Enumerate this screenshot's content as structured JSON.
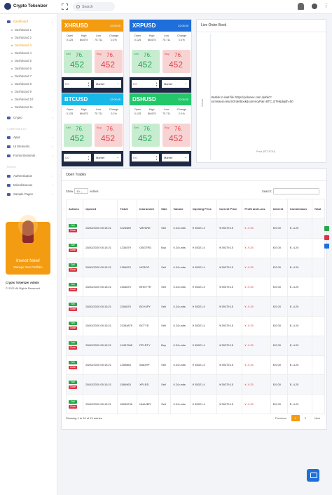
{
  "app": {
    "title": "Crypto Tokenizer",
    "search_placeholder": "Search"
  },
  "sidebar": {
    "dashboard_label": "Dashboard",
    "sub_items": [
      "Dashboard 1",
      "Dashboard 2",
      "Dashboard 3",
      "Dashboard 4",
      "Dashboard 5",
      "Dashboard 6",
      "Dashboard 7",
      "Dashboard 8",
      "Dashboard 9",
      "Dashboard 10",
      "Dashboard 11"
    ],
    "crypto": "Crypto",
    "components_head": "COMPONENTS",
    "apps": "Apps",
    "ui": "UI Elements",
    "forms": "Forms Elements",
    "pages_head": "PAGES",
    "auth": "Authentication",
    "misc": "Miscellaneous",
    "samples": "Sample Pages",
    "promo_title": "Invest Now!",
    "promo_sub": "Manage Your Portfolio",
    "footer_name": "Crypto Tokenizer Admin",
    "footer_copy": "© 2021 All Rights Reserved"
  },
  "colors": {
    "orange": "#f39c12",
    "blue": "#1e6fd9",
    "cyan": "#17b8e8",
    "green": "#22c76a"
  },
  "cards": [
    {
      "pair": "XHRUSD",
      "time": "22:06:05",
      "open": "0.125",
      "high": "86.675",
      "low": "75.711",
      "change": "0.1%",
      "sell_a": "76.",
      "sell_b": "452",
      "buy_a": "76.",
      "buy_b": "452",
      "qty": "0.0",
      "order": "Market"
    },
    {
      "pair": "XRPUSD",
      "time": "22:06:05",
      "open": "0.125",
      "high": "86.675",
      "low": "75.711",
      "change": "0.1%",
      "sell_a": "76.",
      "sell_b": "452",
      "buy_a": "76.",
      "buy_b": "452",
      "qty": "0.0",
      "order": "Market"
    },
    {
      "pair": "BTCUSD",
      "time": "22:06:05",
      "open": "0.125",
      "high": "86.675",
      "low": "75.711",
      "change": "0.1%",
      "sell_a": "76.",
      "sell_b": "452",
      "buy_a": "76.",
      "buy_b": "452",
      "qty": "0.0",
      "order": "Market"
    },
    {
      "pair": "DSHUSD",
      "time": "22:06:05",
      "open": "0.125",
      "high": "86.675",
      "low": "75.711",
      "change": "0.1%",
      "sell_a": "76.",
      "sell_b": "452",
      "buy_a": "76.",
      "buy_b": "452",
      "qty": "0.0",
      "order": "Market"
    }
  ],
  "stat_labels": {
    "open": "Open",
    "high": "High",
    "low": "Low",
    "change": "Change",
    "sell": "Sell",
    "buy": "Buy"
  },
  "order_book": {
    "title": "Live Order Book",
    "error": "Unable to load file: https://poloniex.com /public?command=returnOrderBook&currencyPair=BTC_ETH&depth=50",
    "xlabel": "Price (BTC/ETH)",
    "ylabel": "Volume"
  },
  "trades": {
    "title": "Open Trades",
    "show": "Show",
    "entries": "entries",
    "show_value": "10",
    "search": "Search:",
    "headers": [
      "Actions",
      "Opened",
      "Ticket",
      "Instrument",
      "Side",
      "Volume",
      "Opening Price",
      "Current Price",
      "Profit and Loss",
      "Interest",
      "Commission",
      "Total"
    ],
    "sell_btn": "Sell",
    "close_btn": "Close",
    "rows": [
      {
        "opened": "28/02/2020 05:15:21",
        "ticket": "1024589",
        "instrument": "VBFARE",
        "side": "Sell",
        "volume": "0.24 units",
        "open_price": "¥ 35021.4",
        "current_price": "¥ 39279.15",
        "pl": "¥ -9.25",
        "interest": "$ 0.00",
        "commission": "$ -4.20"
      },
      {
        "opened": "28/02/2020 05:15:21",
        "ticket": "1234579",
        "instrument": "OBGTRD",
        "side": "Buy",
        "volume": "0.24 units",
        "open_price": "¥ 35021.4",
        "current_price": "¥ 39279.15",
        "pl": "¥ -9.25",
        "interest": "$ 0.00",
        "commission": "$ -4.20"
      },
      {
        "opened": "28/02/2020 05:15:21",
        "ticket": "1354879",
        "instrument": "NCBFG",
        "side": "Sell",
        "volume": "0.24 units",
        "open_price": "¥ 35021.4",
        "current_price": "¥ 39279.15",
        "pl": "¥ -9.25",
        "interest": "$ 0.00",
        "commission": "$ -4.20"
      },
      {
        "opened": "28/02/2020 05:15:21",
        "ticket": "2154879",
        "instrument": "BHGTYR",
        "side": "Sell",
        "volume": "0.24 units",
        "open_price": "¥ 35021.4",
        "current_price": "¥ 39279.15",
        "pl": "¥ -9.25",
        "interest": "$ 0.00",
        "commission": "$ -4.20"
      },
      {
        "opened": "28/02/2020 05:15:21",
        "ticket": "2154879",
        "instrument": "BCHJPY",
        "side": "Sell",
        "volume": "0.24 units",
        "open_price": "¥ 35021.4",
        "current_price": "¥ 39279.15",
        "pl": "¥ -9.25",
        "interest": "$ 0.00",
        "commission": "$ -4.20"
      },
      {
        "opened": "28/02/2020 05:15:21",
        "ticket": "21354879",
        "instrument": "BCTYD",
        "side": "Sell",
        "volume": "0.24 units",
        "open_price": "¥ 35021.4",
        "current_price": "¥ 39279.15",
        "pl": "¥ -9.25",
        "interest": "$ 0.00",
        "commission": "$ -4.20"
      },
      {
        "opened": "28/02/2020 05:15:21",
        "ticket": "12457965",
        "instrument": "PPLRTY",
        "side": "Buy",
        "volume": "0.24 units",
        "open_price": "¥ 35021.4",
        "current_price": "¥ 39279.15",
        "pl": "¥ -9.25",
        "interest": "$ 0.00",
        "commission": "$ -4.20"
      },
      {
        "opened": "28/02/2020 05:15:21",
        "ticket": "1259865",
        "instrument": "MADRP",
        "side": "Sell",
        "volume": "0.24 units",
        "open_price": "¥ 35021.4",
        "current_price": "¥ 39279.15",
        "pl": "¥ -9.25",
        "interest": "$ 0.00",
        "commission": "$ -4.20"
      },
      {
        "opened": "28/02/2020 05:15:21",
        "ticket": "1584963",
        "instrument": "XPLRD",
        "side": "Sell",
        "volume": "0.24 units",
        "open_price": "¥ 35021.4",
        "current_price": "¥ 39279.15",
        "pl": "¥ -9.25",
        "interest": "$ 0.00",
        "commission": "$ -4.20"
      },
      {
        "opened": "28/02/2020 05:15:21",
        "ticket": "45258796",
        "instrument": "NNAJER",
        "side": "Sell",
        "volume": "0.24 units",
        "open_price": "¥ 35021.4",
        "current_price": "¥ 39279.15",
        "pl": "¥ -9.25",
        "interest": "$ 0.00",
        "commission": "$ -4.20"
      }
    ],
    "info": "Showing 1 to 10 of 19 entries",
    "pager": {
      "prev": "Previous",
      "p1": "1",
      "p2": "2",
      "next": "Next"
    }
  }
}
